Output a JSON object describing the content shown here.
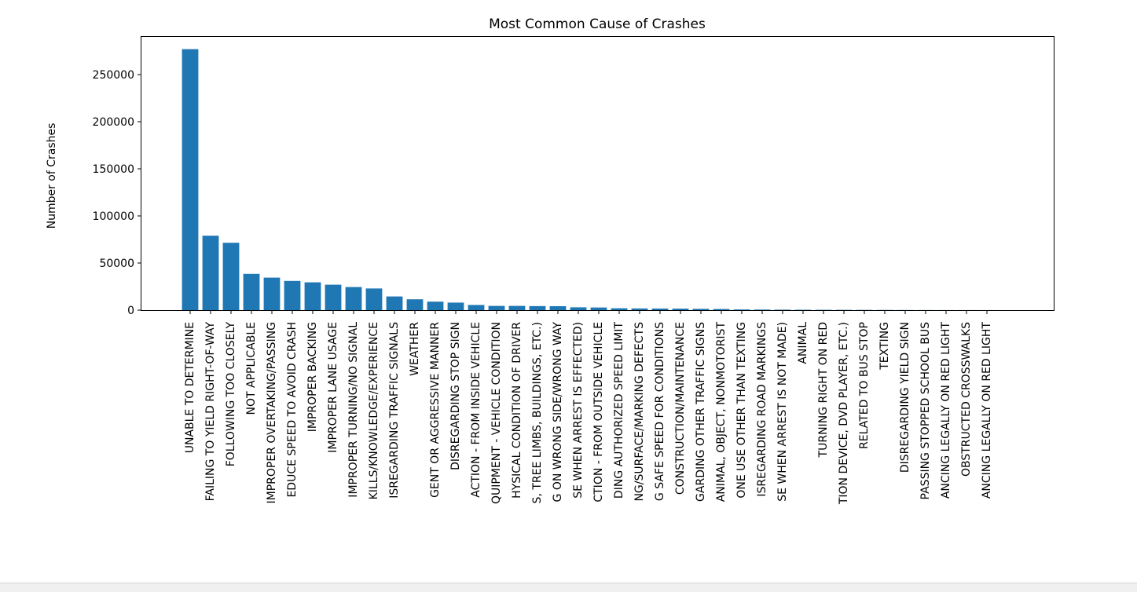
{
  "chart_data": {
    "type": "bar",
    "title": "Most Common Cause of Crashes",
    "xlabel": "",
    "ylabel": "Number of Crashes",
    "ylim": [
      0,
      290000
    ],
    "yticks": [
      0,
      50000,
      100000,
      150000,
      200000,
      250000
    ],
    "ytick_labels": [
      "0",
      "50000",
      "100000",
      "150000",
      "200000",
      "250000"
    ],
    "bar_color": "#1f77b4",
    "grid": false,
    "categories": [
      "UNABLE TO DETERMINE",
      "FAILING TO YIELD RIGHT-OF-WAY",
      "FOLLOWING TOO CLOSELY",
      "NOT APPLICABLE",
      "IMPROPER OVERTAKING/PASSING",
      "EDUCE SPEED TO AVOID CRASH",
      "IMPROPER BACKING",
      "IMPROPER LANE USAGE",
      "IMPROPER TURNING/NO SIGNAL",
      "KILLS/KNOWLEDGE/EXPERIENCE",
      "ISREGARDING TRAFFIC SIGNALS",
      "WEATHER",
      "GENT OR AGGRESSIVE MANNER",
      "DISREGARDING STOP SIGN",
      "ACTION - FROM INSIDE VEHICLE",
      "QUIPMENT - VEHICLE CONDITION",
      "HYSICAL CONDITION OF DRIVER",
      "S, TREE LIMBS, BUILDINGS, ETC.)",
      "G ON WRONG SIDE/WRONG WAY",
      "SE WHEN ARREST IS EFFECTED)",
      "CTION - FROM OUTSIDE VEHICLE",
      "DING AUTHORIZED SPEED LIMIT",
      "NG/SURFACE/MARKING DEFECTS",
      "G SAFE SPEED FOR CONDITIONS",
      "CONSTRUCTION/MAINTENANCE",
      "GARDING OTHER TRAFFIC SIGNS",
      "ANIMAL, OBJECT, NONMOTORIST",
      "ONE USE OTHER THAN TEXTING",
      "ISREGARDING ROAD MARKINGS",
      "SE WHEN ARREST IS NOT MADE)",
      "ANIMAL",
      "TURNING RIGHT ON RED",
      "TION DEVICE, DVD PLAYER, ETC.)",
      "RELATED TO BUS STOP",
      "TEXTING",
      "DISREGARDING YIELD SIGN",
      "PASSING STOPPED SCHOOL BUS",
      "ANCING LEGALLY ON RED LIGHT",
      "OBSTRUCTED CROSSWALKS",
      "ANCING LEGALLY ON RED LIGHT"
    ],
    "values": [
      277000,
      79000,
      71500,
      38500,
      34500,
      31000,
      29500,
      27000,
      24500,
      23000,
      14500,
      11500,
      9000,
      8000,
      5500,
      4500,
      4500,
      4300,
      4200,
      3000,
      2800,
      2000,
      1800,
      1700,
      1600,
      1400,
      1200,
      700,
      600,
      500,
      400,
      350,
      300,
      250,
      200,
      150,
      100,
      80,
      60,
      40
    ]
  }
}
